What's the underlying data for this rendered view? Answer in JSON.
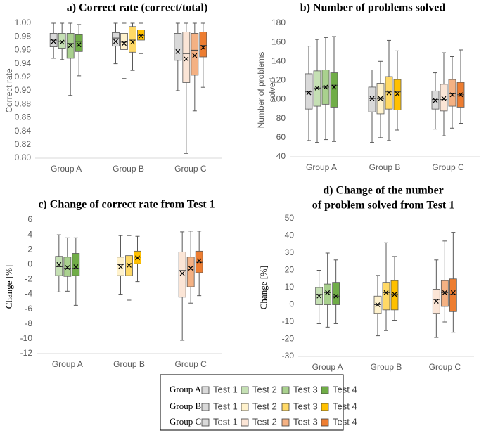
{
  "chart_data": [
    {
      "type": "box",
      "title": [
        "a) Correct rate (correct/total)"
      ],
      "ylabel": [
        "Correct rate"
      ],
      "ylim": [
        0.8,
        1.0
      ],
      "yticks": [
        {
          "value": 0.8,
          "label": "0.80"
        },
        {
          "value": 0.82,
          "label": "0.82"
        },
        {
          "value": 0.84,
          "label": "0.84"
        },
        {
          "value": 0.86,
          "label": "0.86"
        },
        {
          "value": 0.88,
          "label": "0.88"
        },
        {
          "value": 0.9,
          "label": "0.90"
        },
        {
          "value": 0.92,
          "label": "0.92"
        },
        {
          "value": 0.94,
          "label": "0.94"
        },
        {
          "value": 0.96,
          "label": "0.96"
        },
        {
          "value": 0.98,
          "label": "0.98"
        },
        {
          "value": 1.0,
          "label": "1.00"
        }
      ],
      "groups": [
        {
          "name": "Group A",
          "boxes": [
            {
              "color": "#d9d9d9",
              "min": 0.948,
              "q1": 0.965,
              "median": 0.975,
              "q3": 0.985,
              "max": 1.0,
              "mean": 0.973
            },
            {
              "color": "#c5e0b4",
              "min": 0.946,
              "q1": 0.963,
              "median": 0.973,
              "q3": 0.985,
              "max": 1.0,
              "mean": 0.972
            },
            {
              "color": "#a9d18e",
              "min": 0.893,
              "q1": 0.948,
              "median": 0.97,
              "q3": 0.985,
              "max": 1.0,
              "mean": 0.967
            },
            {
              "color": "#70ad47",
              "min": 0.922,
              "q1": 0.958,
              "median": 0.973,
              "q3": 0.983,
              "max": 0.998,
              "mean": 0.968
            }
          ]
        },
        {
          "name": "Group B",
          "boxes": [
            {
              "color": "#d9d9d9",
              "min": 0.94,
              "q1": 0.966,
              "median": 0.978,
              "q3": 0.986,
              "max": 1.0,
              "mean": 0.973
            },
            {
              "color": "#fff2cc",
              "min": 0.918,
              "q1": 0.961,
              "median": 0.972,
              "q3": 0.985,
              "max": 1.0,
              "mean": 0.97
            },
            {
              "color": "#ffd966",
              "min": 0.93,
              "q1": 0.957,
              "median": 0.975,
              "q3": 0.995,
              "max": 1.0,
              "mean": 0.972
            },
            {
              "color": "#ffc000",
              "min": 0.955,
              "q1": 0.975,
              "median": 0.982,
              "q3": 0.99,
              "max": 1.0,
              "mean": 0.981
            }
          ]
        },
        {
          "name": "Group C",
          "boxes": [
            {
              "color": "#d9d9d9",
              "min": 0.9,
              "q1": 0.945,
              "median": 0.962,
              "q3": 0.985,
              "max": 1.0,
              "mean": 0.958
            },
            {
              "color": "#fbe5d6",
              "min": 0.807,
              "q1": 0.912,
              "median": 0.955,
              "q3": 0.987,
              "max": 1.0,
              "mean": 0.947
            },
            {
              "color": "#f4b183",
              "min": 0.87,
              "q1": 0.923,
              "median": 0.96,
              "q3": 0.985,
              "max": 1.0,
              "mean": 0.952
            },
            {
              "color": "#ed7d31",
              "min": 0.905,
              "q1": 0.95,
              "median": 0.967,
              "q3": 0.987,
              "max": 1.0,
              "mean": 0.964
            }
          ]
        }
      ]
    },
    {
      "type": "box",
      "title": [
        "b) Number of problems solved"
      ],
      "ylabel": [
        "Number of problems",
        "solved"
      ],
      "ylim": [
        40,
        180
      ],
      "yticks": [
        40,
        60,
        80,
        100,
        120,
        140,
        160,
        180
      ],
      "groups": [
        {
          "name": "Group A",
          "boxes": [
            {
              "color": "#d9d9d9",
              "min": 57,
              "q1": 90,
              "median": 108,
              "q3": 127,
              "max": 156,
              "mean": 107
            },
            {
              "color": "#c5e0b4",
              "min": 55,
              "q1": 93,
              "median": 112,
              "q3": 130,
              "max": 163,
              "mean": 112
            },
            {
              "color": "#a9d18e",
              "min": 58,
              "q1": 95,
              "median": 113,
              "q3": 131,
              "max": 165,
              "mean": 113
            },
            {
              "color": "#70ad47",
              "min": 56,
              "q1": 92,
              "median": 115,
              "q3": 128,
              "max": 166,
              "mean": 113
            }
          ]
        },
        {
          "name": "Group B",
          "boxes": [
            {
              "color": "#d9d9d9",
              "min": 55,
              "q1": 87,
              "median": 101,
              "q3": 113,
              "max": 131,
              "mean": 101
            },
            {
              "color": "#fff2cc",
              "min": 60,
              "q1": 85,
              "median": 101,
              "q3": 117,
              "max": 140,
              "mean": 101
            },
            {
              "color": "#ffd966",
              "min": 57,
              "q1": 90,
              "median": 108,
              "q3": 124,
              "max": 162,
              "mean": 107
            },
            {
              "color": "#ffc000",
              "min": 68,
              "q1": 89,
              "median": 108,
              "q3": 121,
              "max": 151,
              "mean": 106
            }
          ]
        },
        {
          "name": "Group C",
          "boxes": [
            {
              "color": "#d9d9d9",
              "min": 69,
              "q1": 90,
              "median": 100,
              "q3": 109,
              "max": 128,
              "mean": 99
            },
            {
              "color": "#fbe5d6",
              "min": 62,
              "q1": 88,
              "median": 100,
              "q3": 116,
              "max": 149,
              "mean": 101
            },
            {
              "color": "#f4b183",
              "min": 70,
              "q1": 93,
              "median": 106,
              "q3": 121,
              "max": 145,
              "mean": 105
            },
            {
              "color": "#ed7d31",
              "min": 75,
              "q1": 92,
              "median": 105,
              "q3": 118,
              "max": 152,
              "mean": 105
            }
          ]
        }
      ]
    },
    {
      "type": "box",
      "title": [
        "c) Change of correct rate from Test 1"
      ],
      "ylabel": [
        "Change [%]"
      ],
      "ylim": [
        -12,
        6
      ],
      "yticks": [
        -12,
        -10,
        -8,
        -6,
        -4,
        -2,
        0,
        2,
        4,
        6
      ],
      "groups": [
        {
          "name": "Group A",
          "boxes": [
            {
              "color": "#c5e0b4",
              "min": -3.7,
              "q1": -1.5,
              "median": -0.3,
              "q3": 1.1,
              "max": 4.0,
              "mean": 0
            },
            {
              "color": "#a9d18e",
              "min": -3.6,
              "q1": -1.6,
              "median": -0.5,
              "q3": 1.0,
              "max": 3.6,
              "mean": -0.4
            },
            {
              "color": "#70ad47",
              "min": -5.5,
              "q1": -1.5,
              "median": -0.5,
              "q3": 1.5,
              "max": 3.6,
              "mean": -0.3
            }
          ]
        },
        {
          "name": "Group B",
          "boxes": [
            {
              "color": "#fff2cc",
              "min": -4,
              "q1": -1.5,
              "median": 0,
              "q3": 1,
              "max": 3.9,
              "mean": -0.3
            },
            {
              "color": "#ffd966",
              "min": -4.8,
              "q1": -1.5,
              "median": -0.2,
              "q3": 1.2,
              "max": 3.9,
              "mean": -0.1
            },
            {
              "color": "#ffc000",
              "min": -2.3,
              "q1": 0.1,
              "median": 1,
              "q3": 1.8,
              "max": 3.8,
              "mean": 0.9
            }
          ]
        },
        {
          "name": "Group C",
          "boxes": [
            {
              "color": "#fbe5d6",
              "min": -10.2,
              "q1": -4.4,
              "median": -0.8,
              "q3": 1.7,
              "max": 4.4,
              "mean": -1.2
            },
            {
              "color": "#f4b183",
              "min": -5.2,
              "q1": -3,
              "median": -0.6,
              "q3": 1,
              "max": 4.5,
              "mean": -0.5
            },
            {
              "color": "#ed7d31",
              "min": -4.2,
              "q1": -1.1,
              "median": 0.3,
              "q3": 1.8,
              "max": 4.5,
              "mean": 0.5
            }
          ]
        }
      ]
    },
    {
      "type": "box",
      "title": [
        "d) Change of the number",
        "of problem solved from Test 1"
      ],
      "ylabel": [
        "Change [%]"
      ],
      "ylim": [
        -30,
        50
      ],
      "yticks": [
        -30,
        -20,
        -10,
        0,
        10,
        20,
        30,
        40,
        50
      ],
      "groups": [
        {
          "name": "Group A",
          "boxes": [
            {
              "color": "#c5e0b4",
              "min": -11,
              "q1": 0,
              "median": 6,
              "q3": 10,
              "max": 20,
              "mean": 5
            },
            {
              "color": "#a9d18e",
              "min": -13,
              "q1": 0,
              "median": 7,
              "q3": 12,
              "max": 30,
              "mean": 7
            },
            {
              "color": "#70ad47",
              "min": -11,
              "q1": 0,
              "median": 5,
              "q3": 13,
              "max": 26,
              "mean": 5
            }
          ]
        },
        {
          "name": "Group B",
          "boxes": [
            {
              "color": "#fff2cc",
              "min": -18,
              "q1": -5,
              "median": 0,
              "q3": 5,
              "max": 17,
              "mean": 0
            },
            {
              "color": "#ffd966",
              "min": -15,
              "q1": -3,
              "median": 7,
              "q3": 13,
              "max": 36,
              "mean": 7
            },
            {
              "color": "#ffc000",
              "min": -9,
              "q1": -3,
              "median": 6,
              "q3": 14,
              "max": 28,
              "mean": 6
            }
          ]
        },
        {
          "name": "Group C",
          "boxes": [
            {
              "color": "#fbe5d6",
              "min": -19,
              "q1": -5,
              "median": 3,
              "q3": 9,
              "max": 26,
              "mean": 2
            },
            {
              "color": "#f4b183",
              "min": -10,
              "q1": -1,
              "median": 7,
              "q3": 14,
              "max": 37,
              "mean": 7
            },
            {
              "color": "#ed7d31",
              "min": -16,
              "q1": -4,
              "median": 6,
              "q3": 15,
              "max": 42,
              "mean": 7
            }
          ]
        }
      ]
    }
  ],
  "legend": {
    "rows": [
      {
        "group": "Group A",
        "entries": [
          {
            "name": "Test 1",
            "color": "#d9d9d9"
          },
          {
            "name": "Test 2",
            "color": "#c5e0b4"
          },
          {
            "name": "Test 3",
            "color": "#a9d18e"
          },
          {
            "name": "Test 4",
            "color": "#70ad47"
          }
        ]
      },
      {
        "group": "Group B",
        "entries": [
          {
            "name": "Test 1",
            "color": "#d9d9d9"
          },
          {
            "name": "Test 2",
            "color": "#fff2cc"
          },
          {
            "name": "Test 3",
            "color": "#ffd966"
          },
          {
            "name": "Test 4",
            "color": "#ffc000"
          }
        ]
      },
      {
        "group": "Group C",
        "entries": [
          {
            "name": "Test 1",
            "color": "#d9d9d9"
          },
          {
            "name": "Test 2",
            "color": "#fbe5d6"
          },
          {
            "name": "Test 3",
            "color": "#f4b183"
          },
          {
            "name": "Test 4",
            "color": "#ed7d31"
          }
        ]
      }
    ]
  }
}
